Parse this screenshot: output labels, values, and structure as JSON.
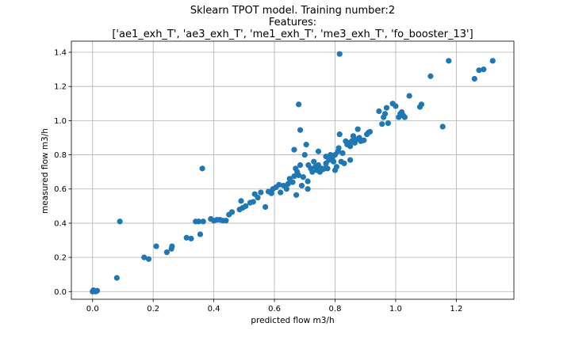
{
  "chart_data": {
    "type": "scatter",
    "title_lines": [
      "Sklearn TPOT model. Training number:2",
      "Features:",
      "['ae1_exh_T', 'ae3_exh_T', 'me1_exh_T', 'me3_exh_T', 'fo_booster_13']"
    ],
    "xlabel": "predicted flow m3/h",
    "ylabel": "measured flow m3/h",
    "xlim": [
      -0.07,
      1.39
    ],
    "ylim": [
      -0.045,
      1.465
    ],
    "xticks": [
      0.0,
      0.2,
      0.4,
      0.6,
      0.8,
      1.0,
      1.2
    ],
    "yticks": [
      0.0,
      0.2,
      0.4,
      0.6,
      0.8,
      1.0,
      1.2,
      1.4
    ],
    "xtick_labels": [
      "0.0",
      "0.2",
      "0.4",
      "0.6",
      "0.8",
      "1.0",
      "1.2"
    ],
    "ytick_labels": [
      "0.0",
      "0.2",
      "0.4",
      "0.6",
      "0.8",
      "1.0",
      "1.2",
      "1.4"
    ],
    "grid": true,
    "marker_color": "#1f77b4",
    "points": [
      [
        0.0,
        0.0
      ],
      [
        0.005,
        0.005
      ],
      [
        0.01,
        0.0
      ],
      [
        0.015,
        0.005
      ],
      [
        0.003,
        0.008
      ],
      [
        0.012,
        0.002
      ],
      [
        0.08,
        0.08
      ],
      [
        0.09,
        0.41
      ],
      [
        0.17,
        0.2
      ],
      [
        0.185,
        0.19
      ],
      [
        0.21,
        0.265
      ],
      [
        0.245,
        0.23
      ],
      [
        0.26,
        0.25
      ],
      [
        0.262,
        0.265
      ],
      [
        0.31,
        0.315
      ],
      [
        0.325,
        0.31
      ],
      [
        0.34,
        0.41
      ],
      [
        0.35,
        0.41
      ],
      [
        0.355,
        0.335
      ],
      [
        0.365,
        0.41
      ],
      [
        0.362,
        0.72
      ],
      [
        0.39,
        0.425
      ],
      [
        0.4,
        0.415
      ],
      [
        0.41,
        0.42
      ],
      [
        0.42,
        0.42
      ],
      [
        0.43,
        0.415
      ],
      [
        0.44,
        0.415
      ],
      [
        0.45,
        0.45
      ],
      [
        0.46,
        0.465
      ],
      [
        0.485,
        0.48
      ],
      [
        0.49,
        0.53
      ],
      [
        0.495,
        0.49
      ],
      [
        0.505,
        0.5
      ],
      [
        0.52,
        0.52
      ],
      [
        0.53,
        0.525
      ],
      [
        0.535,
        0.57
      ],
      [
        0.545,
        0.55
      ],
      [
        0.555,
        0.58
      ],
      [
        0.57,
        0.495
      ],
      [
        0.58,
        0.585
      ],
      [
        0.59,
        0.575
      ],
      [
        0.595,
        0.6
      ],
      [
        0.605,
        0.61
      ],
      [
        0.615,
        0.625
      ],
      [
        0.62,
        0.58
      ],
      [
        0.63,
        0.62
      ],
      [
        0.64,
        0.6
      ],
      [
        0.645,
        0.63
      ],
      [
        0.65,
        0.66
      ],
      [
        0.66,
        0.64
      ],
      [
        0.665,
        0.675
      ],
      [
        0.67,
        0.72
      ],
      [
        0.665,
        0.83
      ],
      [
        0.672,
        0.565
      ],
      [
        0.675,
        0.7
      ],
      [
        0.68,
        0.68
      ],
      [
        0.685,
        0.74
      ],
      [
        0.685,
        0.945
      ],
      [
        0.68,
        1.095
      ],
      [
        0.69,
        0.62
      ],
      [
        0.695,
        0.67
      ],
      [
        0.7,
        0.8
      ],
      [
        0.705,
        0.86
      ],
      [
        0.71,
        0.6
      ],
      [
        0.71,
        0.645
      ],
      [
        0.712,
        0.74
      ],
      [
        0.72,
        0.72
      ],
      [
        0.725,
        0.7
      ],
      [
        0.73,
        0.76
      ],
      [
        0.735,
        0.73
      ],
      [
        0.74,
        0.71
      ],
      [
        0.745,
        0.74
      ],
      [
        0.745,
        0.82
      ],
      [
        0.75,
        0.7
      ],
      [
        0.755,
        0.72
      ],
      [
        0.76,
        0.715
      ],
      [
        0.765,
        0.72
      ],
      [
        0.77,
        0.75
      ],
      [
        0.775,
        0.72
      ],
      [
        0.77,
        0.79
      ],
      [
        0.78,
        0.77
      ],
      [
        0.785,
        0.8
      ],
      [
        0.79,
        0.78
      ],
      [
        0.795,
        0.76
      ],
      [
        0.8,
        0.71
      ],
      [
        0.8,
        0.8
      ],
      [
        0.805,
        0.73
      ],
      [
        0.81,
        0.82
      ],
      [
        0.812,
        0.84
      ],
      [
        0.815,
        0.92
      ],
      [
        0.815,
        1.39
      ],
      [
        0.82,
        0.76
      ],
      [
        0.825,
        0.81
      ],
      [
        0.83,
        0.75
      ],
      [
        0.835,
        0.88
      ],
      [
        0.84,
        0.86
      ],
      [
        0.845,
        0.87
      ],
      [
        0.85,
        0.77
      ],
      [
        0.85,
        0.85
      ],
      [
        0.855,
        0.88
      ],
      [
        0.86,
        0.91
      ],
      [
        0.865,
        0.87
      ],
      [
        0.87,
        0.89
      ],
      [
        0.875,
        0.95
      ],
      [
        0.88,
        0.9
      ],
      [
        0.885,
        0.88
      ],
      [
        0.895,
        0.885
      ],
      [
        0.905,
        0.92
      ],
      [
        0.91,
        0.93
      ],
      [
        0.915,
        0.935
      ],
      [
        0.945,
        1.055
      ],
      [
        0.955,
        0.98
      ],
      [
        0.96,
        1.02
      ],
      [
        0.965,
        1.04
      ],
      [
        0.97,
        1.075
      ],
      [
        0.975,
        0.985
      ],
      [
        0.99,
        1.1
      ],
      [
        1.0,
        1.085
      ],
      [
        1.01,
        1.02
      ],
      [
        1.015,
        1.04
      ],
      [
        1.02,
        1.05
      ],
      [
        1.025,
        1.03
      ],
      [
        1.03,
        1.02
      ],
      [
        1.045,
        1.145
      ],
      [
        1.08,
        1.08
      ],
      [
        1.085,
        1.095
      ],
      [
        1.115,
        1.26
      ],
      [
        1.155,
        0.965
      ],
      [
        1.175,
        1.35
      ],
      [
        1.26,
        1.245
      ],
      [
        1.275,
        1.295
      ],
      [
        1.29,
        1.3
      ],
      [
        1.32,
        1.35
      ]
    ]
  }
}
